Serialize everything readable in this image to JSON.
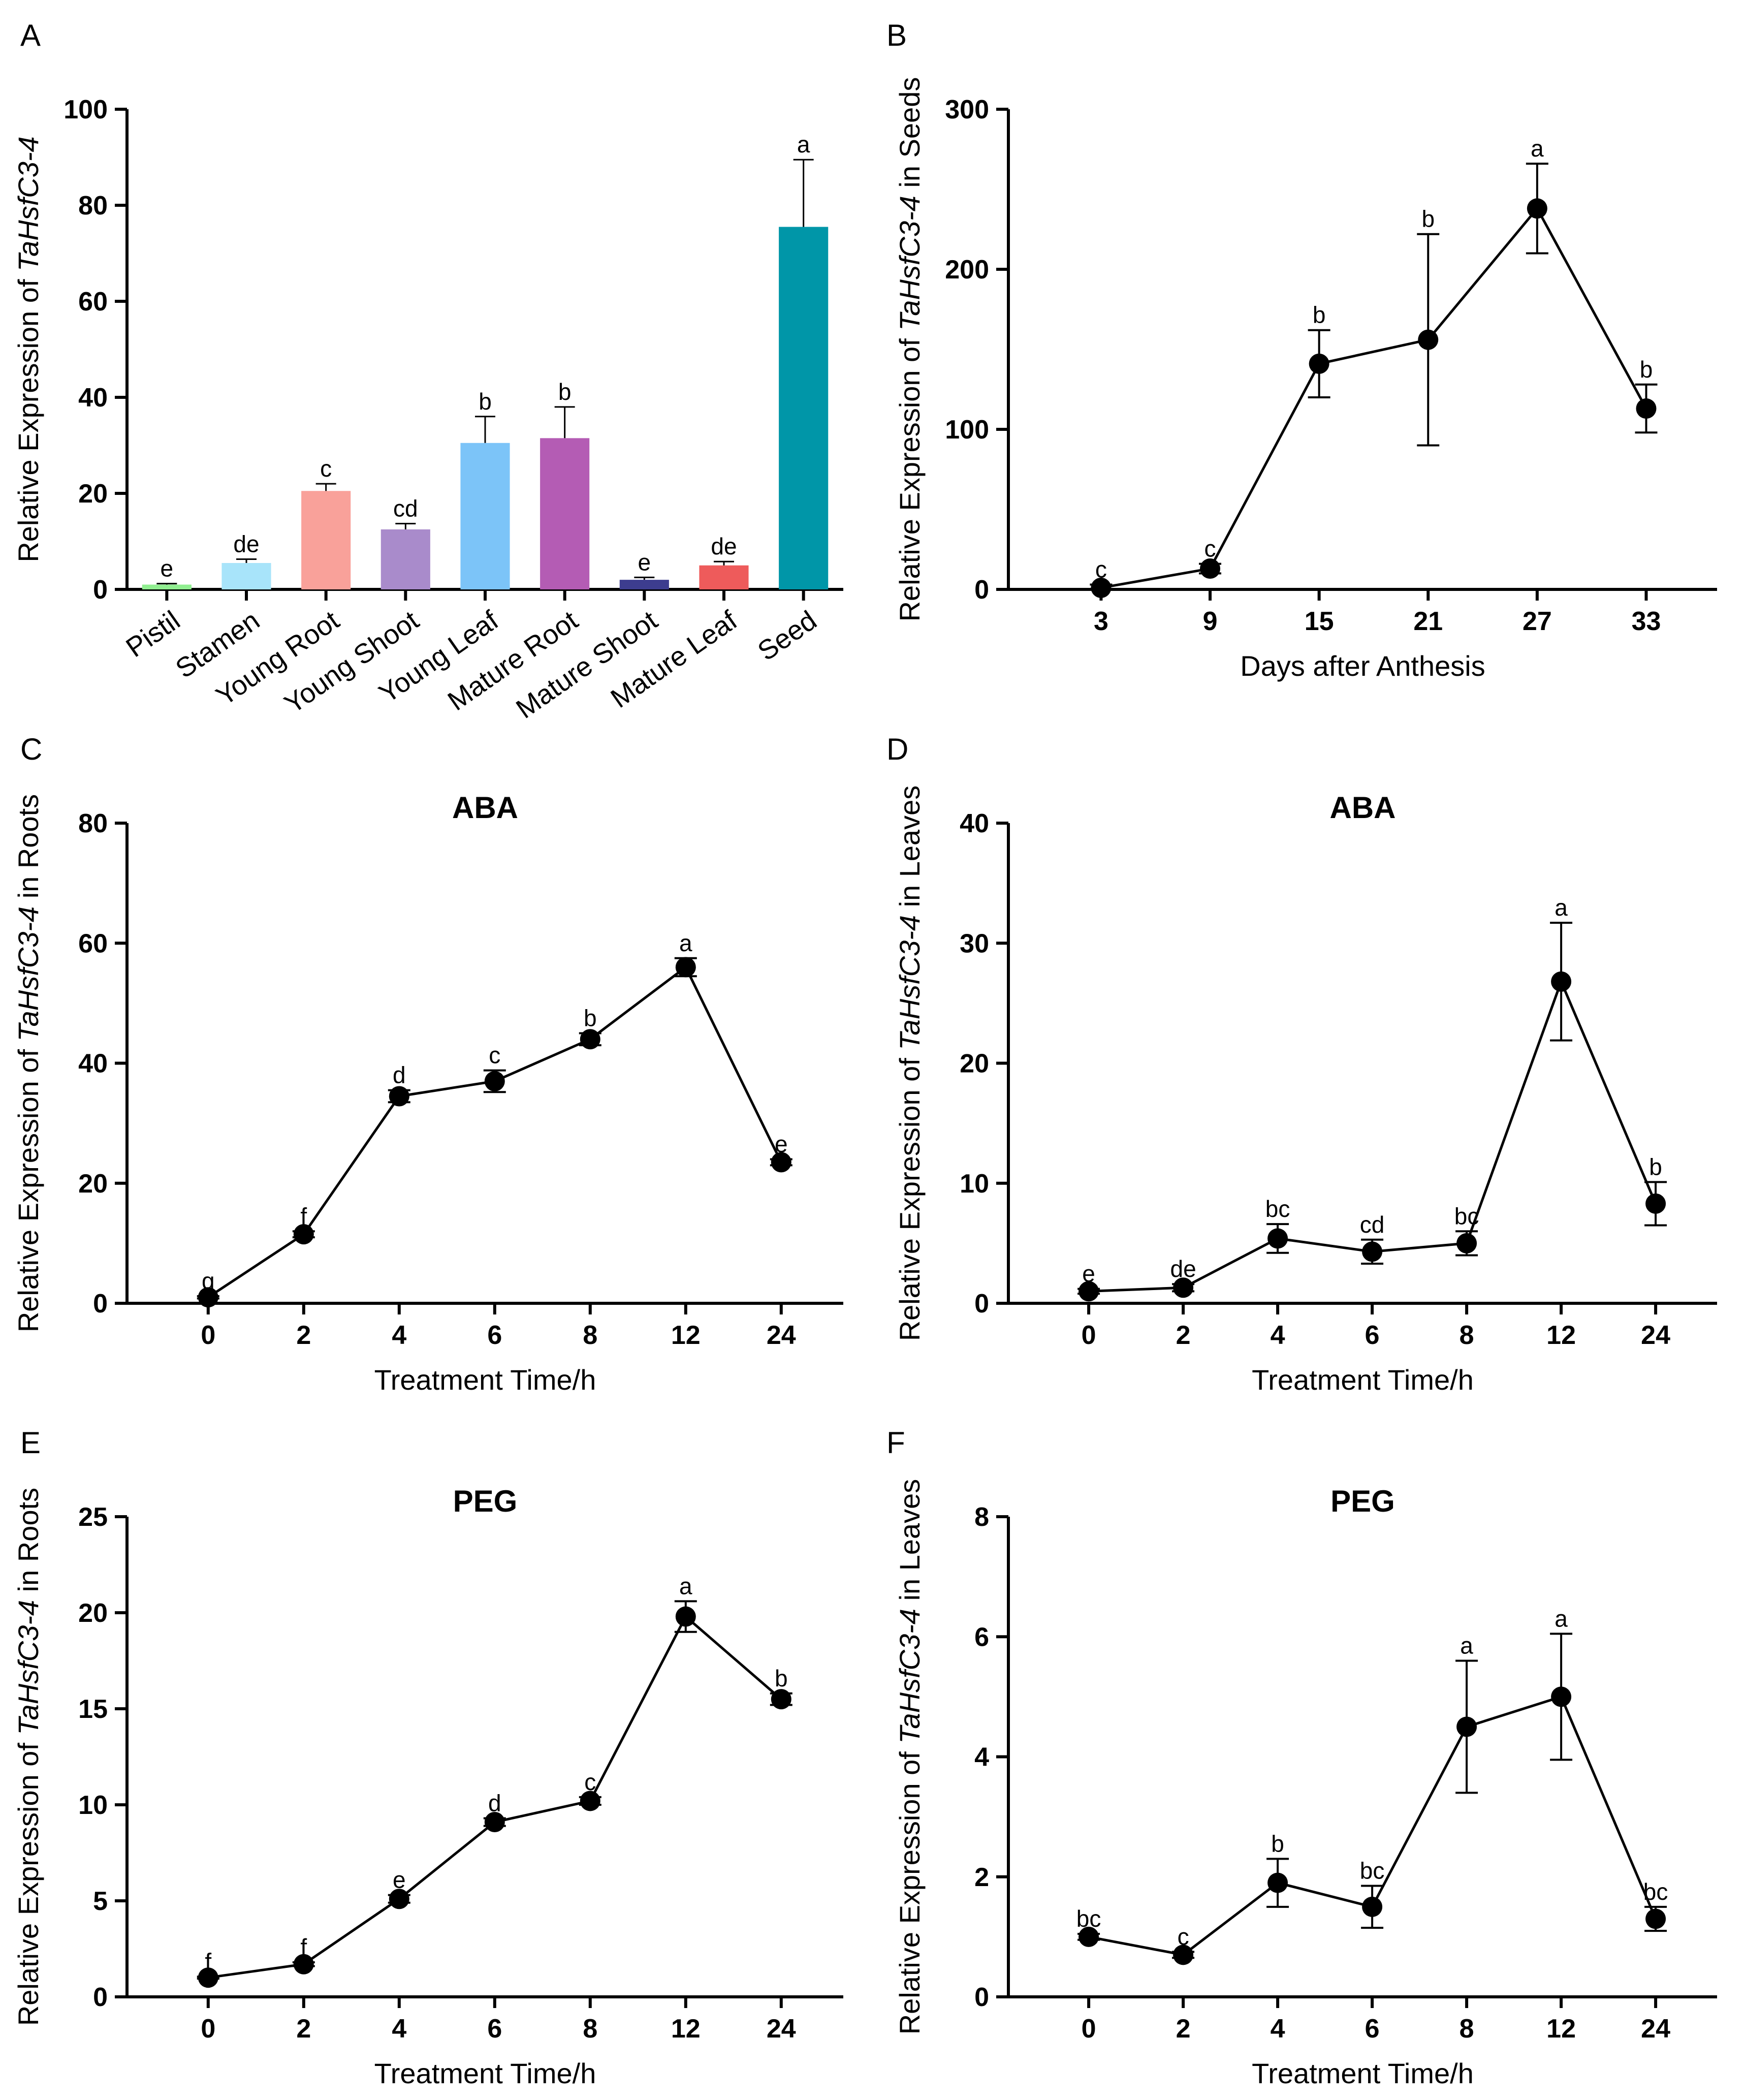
{
  "chart_data": [
    {
      "panel": "A",
      "type": "bar",
      "title": "",
      "ylabel_parts": [
        "Relative Expression of ",
        "TaHsfC3-4"
      ],
      "xlabel": "",
      "ylim": [
        0,
        100
      ],
      "yticks": [
        0,
        20,
        40,
        60,
        80,
        100
      ],
      "categories": [
        "Pistil",
        "Stamen",
        "Young Root",
        "Young Shoot",
        "Young Leaf",
        "Mature Root",
        "Mature Shoot",
        "Mature Leaf",
        "Seed"
      ],
      "values": [
        1,
        5.5,
        20.5,
        12.5,
        30.5,
        31.5,
        2,
        5,
        75.5
      ],
      "errors": [
        0.2,
        0.8,
        1.5,
        1.2,
        5.5,
        6.5,
        0.5,
        0.8,
        14
      ],
      "letters": [
        "e",
        "de",
        "c",
        "cd",
        "b",
        "b",
        "e",
        "de",
        "a"
      ],
      "colors": [
        "#90EE90",
        "#A8E4FA",
        "#F9A19A",
        "#A98BCB",
        "#7CC4F8",
        "#B45CB4",
        "#3D3D8F",
        "#EE5B5B",
        "#0096A8"
      ]
    },
    {
      "panel": "B",
      "type": "line",
      "title": "",
      "ylabel_parts": [
        "Relative Expression of ",
        "TaHsfC3-4",
        " in Seeds"
      ],
      "xlabel": "Days after Anthesis",
      "ylim": [
        0,
        300
      ],
      "yticks": [
        0,
        100,
        200,
        300
      ],
      "categories": [
        "3",
        "9",
        "15",
        "21",
        "27",
        "33"
      ],
      "values": [
        1,
        13,
        141,
        156,
        238,
        113
      ],
      "errors": [
        2,
        3,
        21,
        66,
        28,
        15
      ],
      "letters": [
        "c",
        "c",
        "b",
        "b",
        "a",
        "b"
      ]
    },
    {
      "panel": "C",
      "type": "line",
      "title": "ABA",
      "ylabel_parts": [
        "Relative Expression of ",
        "TaHsfC3-4",
        " in Roots"
      ],
      "xlabel": "Treatment Time/h",
      "ylim": [
        0,
        80
      ],
      "yticks": [
        0,
        20,
        40,
        60,
        80
      ],
      "categories": [
        "0",
        "2",
        "4",
        "6",
        "8",
        "12",
        "24"
      ],
      "values": [
        1,
        11.5,
        34.5,
        37,
        44,
        56,
        23.5
      ],
      "errors": [
        0.2,
        0.5,
        1,
        1.8,
        1,
        1.5,
        0.5
      ],
      "letters": [
        "g",
        "f",
        "d",
        "c",
        "b",
        "a",
        "e"
      ]
    },
    {
      "panel": "D",
      "type": "line",
      "title": "ABA",
      "ylabel_parts": [
        "Relative Expression of ",
        "TaHsfC3-4",
        " in Leaves"
      ],
      "xlabel": "Treatment Time/h",
      "ylim": [
        0,
        40
      ],
      "yticks": [
        0,
        10,
        20,
        30,
        40
      ],
      "categories": [
        "0",
        "2",
        "4",
        "6",
        "8",
        "12",
        "24"
      ],
      "values": [
        1,
        1.3,
        5.4,
        4.3,
        5,
        26.8,
        8.3
      ],
      "errors": [
        0.2,
        0.3,
        1.2,
        1,
        1,
        4.9,
        1.8
      ],
      "letters": [
        "e",
        "de",
        "bc",
        "cd",
        "bc",
        "a",
        "b"
      ]
    },
    {
      "panel": "E",
      "type": "line",
      "title": "PEG",
      "ylabel_parts": [
        "Relative Expression of ",
        "TaHsfC3-4",
        " in Roots"
      ],
      "xlabel": "Treatment Time/h",
      "ylim": [
        0,
        25
      ],
      "yticks": [
        0,
        5,
        10,
        15,
        20,
        25
      ],
      "categories": [
        "0",
        "2",
        "4",
        "6",
        "8",
        "12",
        "24"
      ],
      "values": [
        1,
        1.7,
        5.1,
        9.1,
        10.2,
        19.8,
        15.5
      ],
      "errors": [
        0.05,
        0.1,
        0.2,
        0.2,
        0.2,
        0.8,
        0.3
      ],
      "letters": [
        "f",
        "f",
        "e",
        "d",
        "c",
        "a",
        "b"
      ]
    },
    {
      "panel": "F",
      "type": "line",
      "title": "PEG",
      "ylabel_parts": [
        "Relative Expression of ",
        "TaHsfC3-4",
        " in Leaves"
      ],
      "xlabel": "Treatment Time/h",
      "ylim": [
        0,
        8
      ],
      "yticks": [
        0,
        2,
        4,
        6,
        8
      ],
      "categories": [
        "0",
        "2",
        "4",
        "6",
        "8",
        "12",
        "24"
      ],
      "values": [
        1,
        0.7,
        1.9,
        1.5,
        4.5,
        5,
        1.3
      ],
      "errors": [
        0.05,
        0.05,
        0.4,
        0.35,
        1.1,
        1.05,
        0.2
      ],
      "letters": [
        "bc",
        "c",
        "b",
        "bc",
        "a",
        "a",
        "bc"
      ]
    }
  ]
}
